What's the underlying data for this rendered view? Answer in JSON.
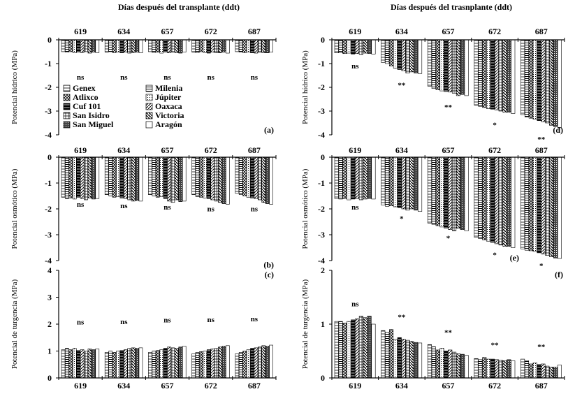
{
  "figure": {
    "top_title_left": "Días después del transplante (ddt)",
    "top_title_right": "Días después del trasnplante (ddt)"
  },
  "legend": [
    "Genex",
    "Milenia",
    "Atlixco",
    "Júpiter",
    "Cuf 101",
    "Oaxaca",
    "San Isidro",
    "Victoria",
    "San Miguel",
    "Aragón"
  ],
  "chart_data": [
    {
      "id": "a",
      "type": "bar",
      "panel_label": "(a)",
      "ylabel": "Potencial hídrico (MPa)",
      "ylim": [
        -4,
        0
      ],
      "yticks": [
        0,
        -1,
        -2,
        -3,
        -4
      ],
      "categories": [
        "619",
        "634",
        "657",
        "672",
        "687"
      ],
      "annotations": [
        "ns",
        "ns",
        "ns",
        "ns",
        "ns"
      ],
      "values": [
        [
          -0.5,
          -0.52,
          -0.5,
          -0.55,
          -0.52,
          -0.54,
          -0.5,
          -0.56,
          -0.52,
          -0.54
        ],
        [
          -0.52,
          -0.5,
          -0.54,
          -0.52,
          -0.55,
          -0.52,
          -0.56,
          -0.54,
          -0.52,
          -0.55
        ],
        [
          -0.5,
          -0.54,
          -0.52,
          -0.56,
          -0.52,
          -0.55,
          -0.52,
          -0.54,
          -0.56,
          -0.52
        ],
        [
          -0.52,
          -0.55,
          -0.5,
          -0.54,
          -0.56,
          -0.52,
          -0.54,
          -0.55,
          -0.52,
          -0.56
        ],
        [
          -0.5,
          -0.52,
          -0.54,
          -0.52,
          -0.55,
          -0.56,
          -0.52,
          -0.54,
          -0.55,
          -0.52
        ]
      ]
    },
    {
      "id": "d",
      "type": "bar",
      "panel_label": "(d)",
      "ylabel": "Potencial hídrico (MPa)",
      "ylim": [
        -4,
        0
      ],
      "yticks": [
        0,
        -1,
        -2,
        -3,
        -4
      ],
      "categories": [
        "619",
        "634",
        "657",
        "672",
        "687"
      ],
      "annotations": [
        "ns",
        "**",
        "**",
        "*",
        "**"
      ],
      "values": [
        [
          -0.55,
          -0.55,
          -0.58,
          -0.56,
          -0.6,
          -0.58,
          -0.62,
          -0.56,
          -0.58,
          -0.6
        ],
        [
          -0.95,
          -1.0,
          -1.1,
          -1.2,
          -1.25,
          -1.3,
          -1.4,
          -1.35,
          -1.4,
          -1.42
        ],
        [
          -1.95,
          -2.05,
          -2.1,
          -2.15,
          -2.18,
          -2.2,
          -2.25,
          -2.35,
          -2.3,
          -2.35
        ],
        [
          -2.75,
          -2.8,
          -2.85,
          -2.9,
          -2.92,
          -2.95,
          -3.0,
          -3.05,
          -3.05,
          -3.1
        ],
        [
          -3.15,
          -3.25,
          -3.3,
          -3.35,
          -3.4,
          -3.45,
          -3.5,
          -3.6,
          -3.65,
          -3.7
        ]
      ]
    },
    {
      "id": "b",
      "type": "bar",
      "panel_label": "(b)",
      "ylabel": "Potencial osmótico (MPa)",
      "ylim": [
        -4,
        0
      ],
      "yticks": [
        0,
        -1,
        -2,
        -3,
        -4
      ],
      "categories": [
        "619",
        "634",
        "657",
        "672",
        "687"
      ],
      "annotations": [
        "ns",
        "ns",
        "ns",
        "ns",
        "ns"
      ],
      "values": [
        [
          -1.55,
          -1.6,
          -1.58,
          -1.62,
          -1.55,
          -1.6,
          -1.65,
          -1.58,
          -1.62,
          -1.6
        ],
        [
          -1.45,
          -1.5,
          -1.55,
          -1.52,
          -1.58,
          -1.6,
          -1.65,
          -1.7,
          -1.68,
          -1.7
        ],
        [
          -1.45,
          -1.5,
          -1.55,
          -1.52,
          -1.6,
          -1.7,
          -1.75,
          -1.65,
          -1.72,
          -1.7
        ],
        [
          -1.45,
          -1.52,
          -1.55,
          -1.58,
          -1.6,
          -1.65,
          -1.7,
          -1.75,
          -1.8,
          -1.82
        ],
        [
          -1.4,
          -1.45,
          -1.5,
          -1.55,
          -1.58,
          -1.6,
          -1.65,
          -1.75,
          -1.8,
          -1.82
        ]
      ]
    },
    {
      "id": "e",
      "type": "bar",
      "panel_label": "(e)",
      "ylabel": "Potencial osmótico (MPa)",
      "ylim": [
        -4,
        0
      ],
      "yticks": [
        0,
        -1,
        -2,
        -3,
        -4
      ],
      "categories": [
        "619",
        "634",
        "657",
        "672",
        "687"
      ],
      "annotations": [
        "ns",
        "*",
        "*",
        "*",
        "*"
      ],
      "values": [
        [
          -1.6,
          -1.62,
          -1.6,
          -1.65,
          -1.62,
          -1.6,
          -1.65,
          -1.62,
          -1.6,
          -1.62
        ],
        [
          -1.85,
          -1.9,
          -1.88,
          -1.92,
          -1.95,
          -2.0,
          -2.05,
          -2.0,
          -2.05,
          -2.1
        ],
        [
          -2.55,
          -2.6,
          -2.65,
          -2.7,
          -2.75,
          -2.8,
          -2.85,
          -2.75,
          -2.8,
          -2.85
        ],
        [
          -3.1,
          -3.15,
          -3.2,
          -3.25,
          -3.3,
          -3.35,
          -3.4,
          -3.45,
          -3.45,
          -3.5
        ],
        [
          -3.55,
          -3.6,
          -3.62,
          -3.65,
          -3.7,
          -3.75,
          -3.8,
          -3.85,
          -3.9,
          -3.92
        ]
      ]
    },
    {
      "id": "c",
      "type": "bar",
      "panel_label": "(c)",
      "ylabel": "Potencial de turgencia (MPa)",
      "ylim": [
        0,
        4
      ],
      "yticks": [
        4,
        3,
        2,
        1,
        0
      ],
      "categories": [
        "619",
        "634",
        "657",
        "672",
        "687"
      ],
      "annotations": [
        "ns",
        "ns",
        "ns",
        "ns",
        "ns"
      ],
      "values": [
        [
          1.05,
          1.1,
          1.05,
          1.1,
          1.02,
          1.05,
          1.0,
          1.08,
          1.05,
          1.08
        ],
        [
          0.95,
          1.0,
          0.95,
          1.0,
          1.02,
          1.05,
          1.1,
          1.12,
          1.1,
          1.12
        ],
        [
          0.95,
          1.0,
          1.02,
          1.05,
          1.1,
          1.15,
          1.12,
          1.1,
          1.15,
          1.18
        ],
        [
          0.9,
          0.95,
          0.98,
          1.0,
          1.05,
          1.08,
          1.1,
          1.15,
          1.18,
          1.2
        ],
        [
          0.9,
          0.95,
          1.0,
          1.05,
          1.1,
          1.12,
          1.15,
          1.2,
          1.18,
          1.22
        ]
      ]
    },
    {
      "id": "f",
      "type": "bar",
      "panel_label": "(f)",
      "ylabel": "Potencial de turgencia (MPa)",
      "ylim": [
        0,
        2
      ],
      "yticks": [
        2,
        1,
        0
      ],
      "categories": [
        "619",
        "634",
        "657",
        "672",
        "687"
      ],
      "annotations": [
        "ns",
        "**",
        "**",
        "**",
        "**"
      ],
      "values": [
        [
          1.05,
          1.05,
          1.02,
          1.05,
          1.08,
          1.1,
          1.15,
          1.12,
          1.15,
          1.0
        ],
        [
          0.88,
          0.85,
          0.9,
          0.72,
          0.75,
          0.72,
          0.7,
          0.68,
          0.66,
          0.65
        ],
        [
          0.62,
          0.58,
          0.52,
          0.55,
          0.5,
          0.52,
          0.48,
          0.45,
          0.44,
          0.42
        ],
        [
          0.36,
          0.34,
          0.38,
          0.35,
          0.35,
          0.34,
          0.33,
          0.32,
          0.34,
          0.32
        ],
        [
          0.35,
          0.32,
          0.26,
          0.28,
          0.25,
          0.26,
          0.22,
          0.2,
          0.2,
          0.24
        ]
      ]
    }
  ]
}
